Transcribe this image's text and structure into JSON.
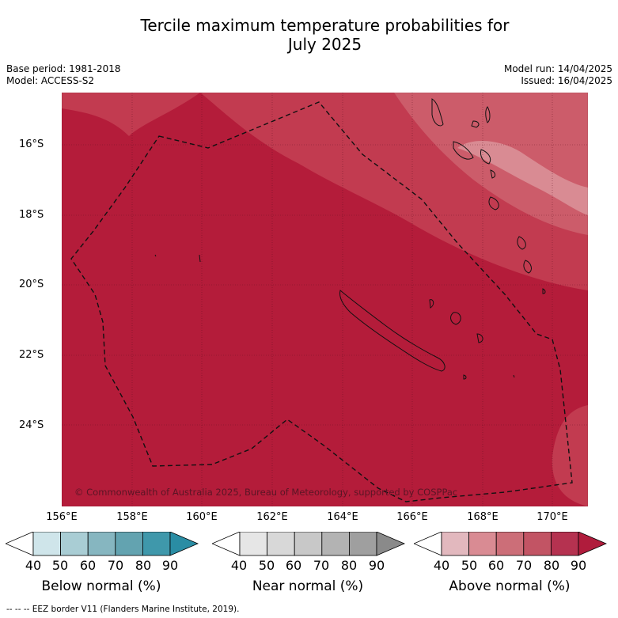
{
  "title_line1": "Tercile maximum temperature probabilities for",
  "title_line2": "July 2025",
  "meta_left": [
    "Base period: 1981-2018",
    "Model: ACCESS-S2"
  ],
  "meta_right": [
    "Model run: 14/04/2025",
    "Issued: 16/04/2025"
  ],
  "map": {
    "lat_ticks": [
      "16°S",
      "18°S",
      "20°S",
      "22°S",
      "24°S"
    ],
    "lon_ticks": [
      "156°E",
      "158°E",
      "160°E",
      "162°E",
      "164°E",
      "166°E",
      "168°E",
      "170°E"
    ],
    "copyright": "© Commonwealth of Australia 2025, Bureau of Meteorology, supported by COSPPac",
    "dominant_category": "Above normal",
    "colors": {
      "above_80_90": "#b41c3a",
      "above_70_80": "#c23b50",
      "above_60_70": "#cc5c6a",
      "above_50_60": "#d98b93"
    }
  },
  "colorbars": [
    {
      "label": "Below normal (%)",
      "ticks": [
        "40",
        "50",
        "60",
        "70",
        "80",
        "90"
      ],
      "colors": [
        "#ffffff",
        "#cfe5ea",
        "#a9cdd4",
        "#86b6c0",
        "#63a3b0",
        "#3f98ab",
        "#2a8da4"
      ]
    },
    {
      "label": "Near normal (%)",
      "ticks": [
        "40",
        "50",
        "60",
        "70",
        "80",
        "90"
      ],
      "colors": [
        "#ffffff",
        "#e6e6e6",
        "#d8d8d8",
        "#c8c8c8",
        "#b3b3b3",
        "#9f9f9f",
        "#8a8a8a"
      ]
    },
    {
      "label": "Above normal (%)",
      "ticks": [
        "40",
        "50",
        "60",
        "70",
        "80",
        "90"
      ],
      "colors": [
        "#ffffff",
        "#e2b8be",
        "#d98b93",
        "#cc6e78",
        "#c25464",
        "#b53250",
        "#b01c3c"
      ]
    }
  ],
  "footer": "--  --  -- EEZ border V11 (Flanders Marine Institute, 2019)."
}
